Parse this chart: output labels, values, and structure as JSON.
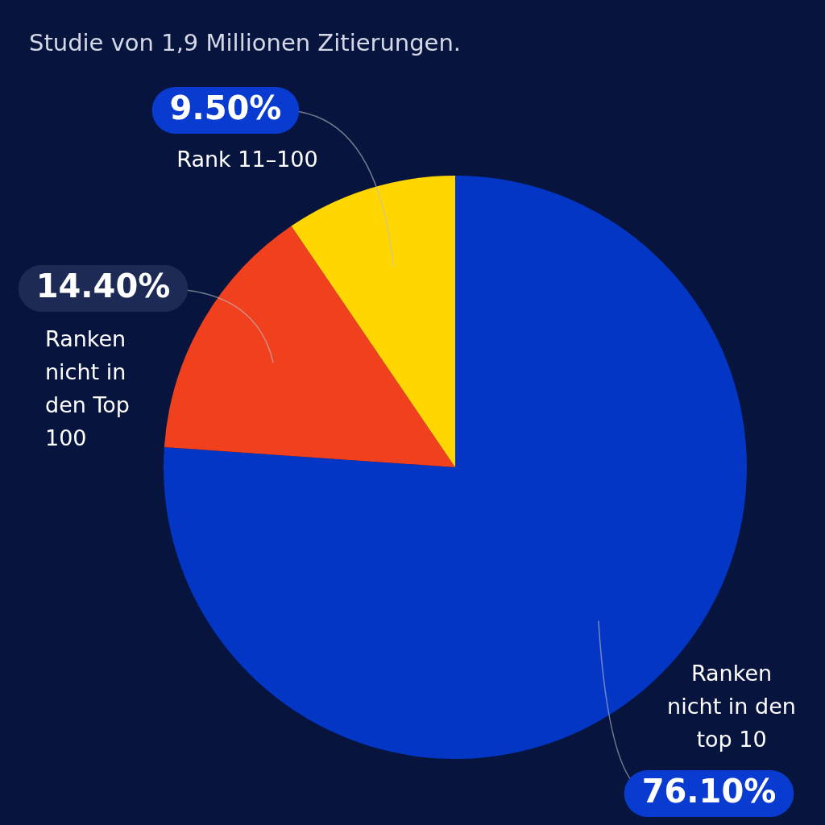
{
  "chart_data": {
    "type": "pie",
    "subtitle": "Studie von 1,9 Millionen Zitierungen.",
    "categories": [
      "Ranken nicht in den top 10",
      "Ranken nicht in den Top 100",
      "Rank 11–100"
    ],
    "values": [
      76.1,
      14.4,
      9.5
    ],
    "value_labels": [
      "76.10%",
      "14.40%",
      "9.50%"
    ],
    "colors": [
      "#0336c4",
      "#f0401e",
      "#ffd600"
    ],
    "legend": false
  }
}
